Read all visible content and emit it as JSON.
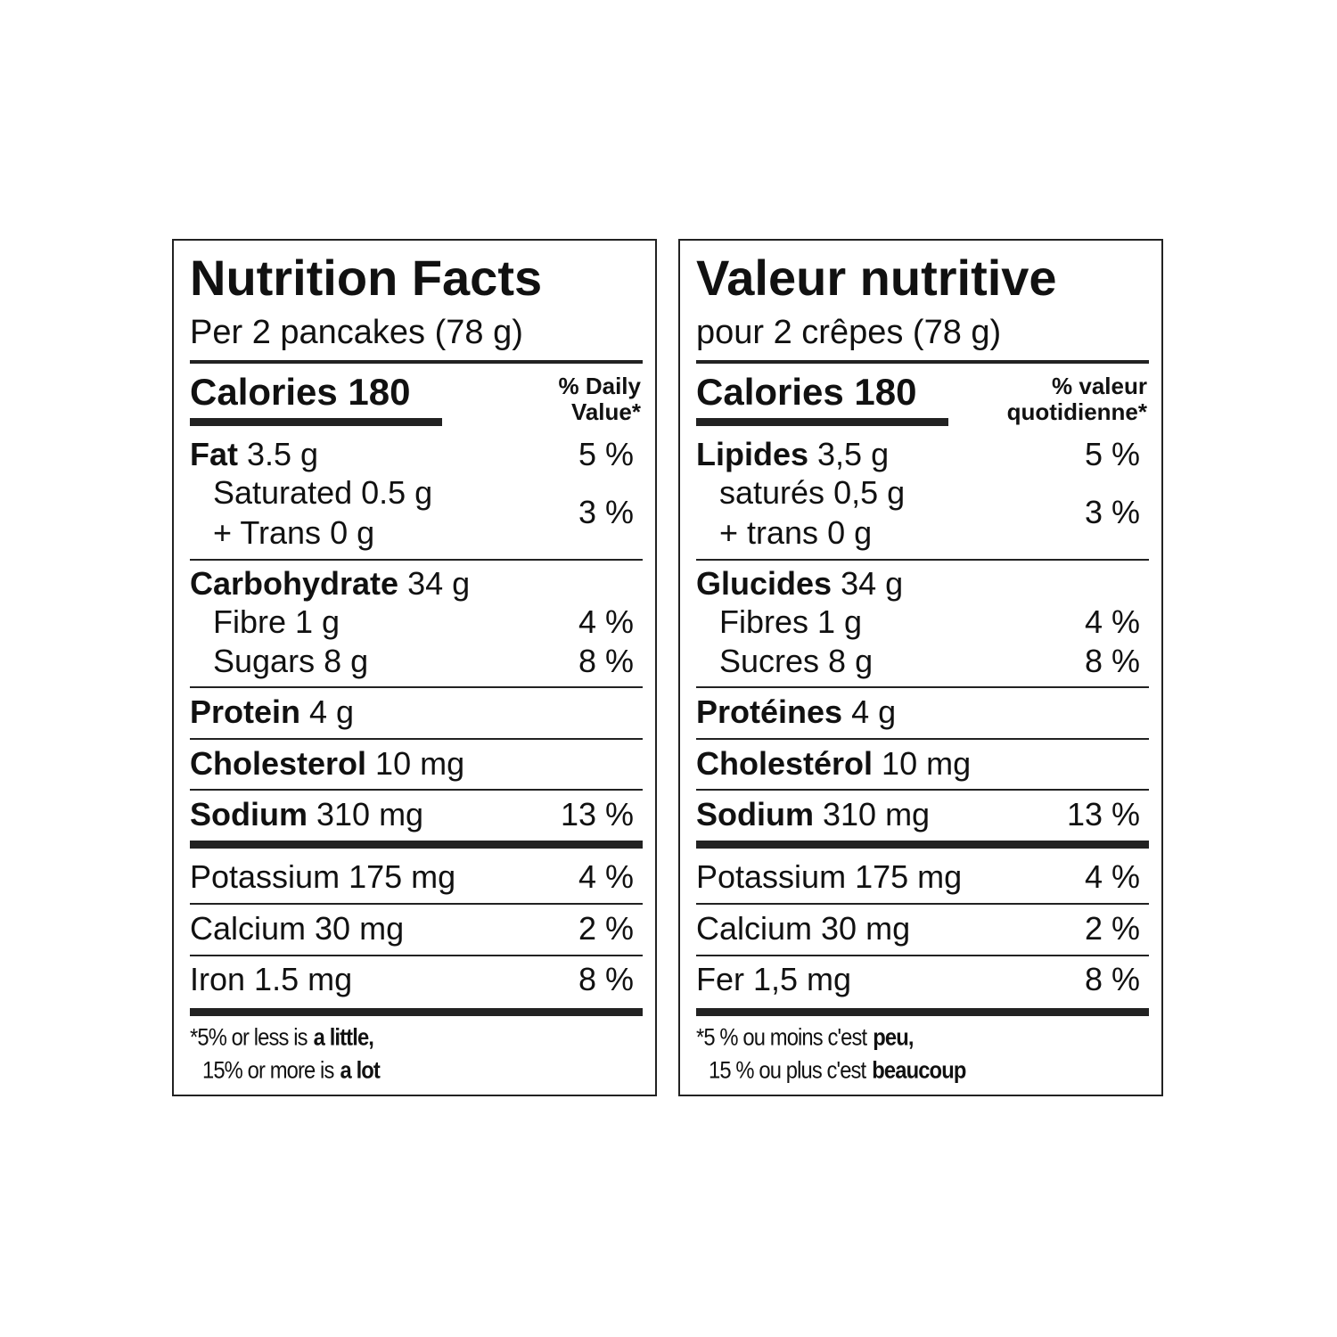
{
  "panels": [
    {
      "title": "Nutrition Facts",
      "serving": "Per 2 pancakes (78 g)",
      "calories": "Calories 180",
      "dv_header": [
        "% Daily",
        "Value*"
      ],
      "rows": [
        {
          "nutrient": "Fat",
          "amount": "3.5 g",
          "dv": "5 %"
        },
        {
          "nutrient": "Saturated",
          "amount": "0.5 g",
          "dv": "3 %"
        },
        {
          "nutrient": "+ Trans",
          "amount": "0 g"
        },
        {
          "nutrient": "Carbohydrate",
          "amount": "34 g"
        },
        {
          "nutrient": "Fibre",
          "amount": "1 g",
          "dv": "4 %"
        },
        {
          "nutrient": "Sugars",
          "amount": "8 g",
          "dv": "8 %"
        },
        {
          "nutrient": "Protein",
          "amount": "4 g"
        },
        {
          "nutrient": "Cholesterol",
          "amount": "10 mg"
        },
        {
          "nutrient": "Sodium",
          "amount": "310 mg",
          "dv": "13 %"
        },
        {
          "nutrient": "Potassium",
          "amount": "175 mg",
          "dv": "4 %"
        },
        {
          "nutrient": "Calcium",
          "amount": "30 mg",
          "dv": "2 %"
        },
        {
          "nutrient": "Iron",
          "amount": "1.5 mg",
          "dv": "8 %"
        }
      ],
      "footnote": [
        [
          "*5% or less is",
          "a little,"
        ],
        [
          "15% or more is",
          "a lot"
        ]
      ]
    },
    {
      "title": "Valeur nutritive",
      "serving": "pour 2 crêpes (78 g)",
      "calories": "Calories 180",
      "dv_header": [
        "% valeur",
        "quotidienne*"
      ],
      "rows": [
        {
          "nutrient": "Lipides",
          "amount": "3,5 g",
          "dv": "5 %"
        },
        {
          "nutrient": "saturés",
          "amount": "0,5 g",
          "dv": "3 %"
        },
        {
          "nutrient": "+ trans",
          "amount": "0 g"
        },
        {
          "nutrient": "Glucides",
          "amount": "34 g"
        },
        {
          "nutrient": "Fibres",
          "amount": "1 g",
          "dv": "4 %"
        },
        {
          "nutrient": "Sucres",
          "amount": "8 g",
          "dv": "8 %"
        },
        {
          "nutrient": "Protéines",
          "amount": "4 g"
        },
        {
          "nutrient": "Cholestérol",
          "amount": "10 mg"
        },
        {
          "nutrient": "Sodium",
          "amount": "310 mg",
          "dv": "13 %"
        },
        {
          "nutrient": "Potassium",
          "amount": "175 mg",
          "dv": "4 %"
        },
        {
          "nutrient": "Calcium",
          "amount": "30 mg",
          "dv": "2 %"
        },
        {
          "nutrient": "Fer",
          "amount": "1,5 mg",
          "dv": "8 %"
        }
      ],
      "footnote": [
        [
          "*5 % ou moins c'est",
          "peu,"
        ],
        [
          "15 % ou plus c'est",
          "beaucoup"
        ]
      ]
    }
  ]
}
